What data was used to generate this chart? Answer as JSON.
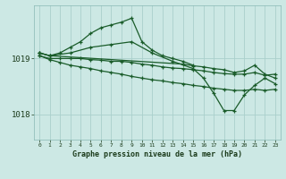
{
  "bg_color": "#cce8e4",
  "grid_color": "#aad0cc",
  "line_color": "#1a5c2a",
  "title": "Graphe pression niveau de la mer (hPa)",
  "ylabel_ticks": [
    1018,
    1019
  ],
  "xlim": [
    -0.5,
    23.5
  ],
  "ylim": [
    1017.55,
    1019.95
  ],
  "lines": [
    {
      "x": [
        0,
        1,
        2,
        3,
        4,
        5,
        6,
        7,
        8,
        9,
        10,
        11,
        12,
        13,
        14,
        15
      ],
      "y": [
        1019.1,
        1019.05,
        1019.1,
        1019.2,
        1019.3,
        1019.45,
        1019.55,
        1019.6,
        1019.65,
        1019.72,
        1019.3,
        1019.15,
        1019.05,
        1019.0,
        1018.95,
        1018.88
      ]
    },
    {
      "x": [
        0,
        1,
        2,
        3,
        4,
        5,
        6,
        7,
        8,
        9,
        10,
        11,
        12,
        13,
        14,
        15,
        16,
        17,
        18,
        19,
        20,
        21,
        22,
        23
      ],
      "y": [
        1019.05,
        1019.0,
        1019.0,
        1019.0,
        1019.0,
        1018.98,
        1018.97,
        1018.95,
        1018.95,
        1018.93,
        1018.9,
        1018.88,
        1018.85,
        1018.83,
        1018.82,
        1018.8,
        1018.78,
        1018.75,
        1018.73,
        1018.72,
        1018.72,
        1018.75,
        1018.7,
        1018.72
      ]
    },
    {
      "x": [
        0,
        1,
        2,
        3,
        4,
        5,
        6,
        7,
        8,
        9,
        10,
        11,
        12,
        13,
        14,
        15,
        16,
        17,
        18,
        19,
        20,
        21,
        22,
        23
      ],
      "y": [
        1019.05,
        1018.98,
        1018.93,
        1018.88,
        1018.85,
        1018.82,
        1018.78,
        1018.75,
        1018.72,
        1018.68,
        1018.65,
        1018.62,
        1018.6,
        1018.57,
        1018.55,
        1018.52,
        1018.5,
        1018.47,
        1018.45,
        1018.43,
        1018.43,
        1018.45,
        1018.43,
        1018.45
      ]
    },
    {
      "x": [
        0,
        1,
        3,
        5,
        7,
        9,
        11,
        13,
        15,
        16,
        17,
        18,
        19,
        20,
        21,
        22,
        23
      ],
      "y": [
        1019.1,
        1019.05,
        1019.1,
        1019.2,
        1019.25,
        1019.3,
        1019.1,
        1018.95,
        1018.82,
        1018.65,
        1018.38,
        1018.07,
        1018.07,
        1018.35,
        1018.52,
        1018.65,
        1018.55
      ]
    },
    {
      "x": [
        0,
        1,
        14,
        15,
        16,
        17,
        18,
        19,
        20,
        21,
        22,
        23
      ],
      "y": [
        1019.1,
        1019.05,
        1018.9,
        1018.87,
        1018.85,
        1018.82,
        1018.8,
        1018.75,
        1018.78,
        1018.88,
        1018.72,
        1018.65
      ]
    }
  ]
}
